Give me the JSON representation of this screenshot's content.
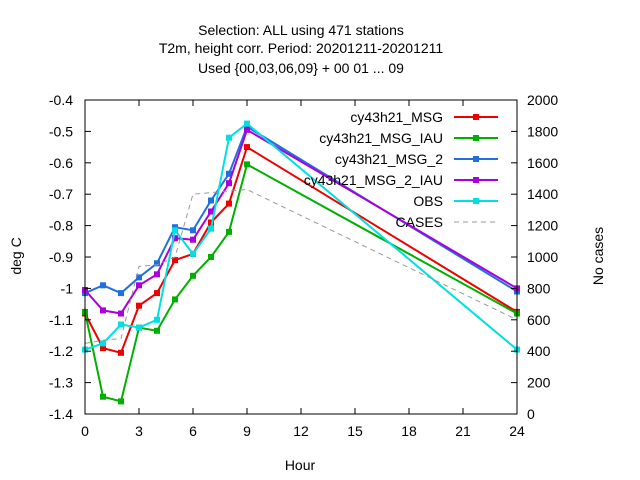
{
  "chart_data": {
    "type": "line",
    "title_lines": [
      "Selection: ALL using   471 stations",
      "T2m, height corr.   Period: 20201211-20201211",
      "Used {00,03,06,09} + 00 01 ... 09"
    ],
    "xlabel": "Hour",
    "ylabel": "deg C",
    "y2label": "No cases",
    "xlim": [
      0,
      24
    ],
    "ylim": [
      -1.4,
      -0.4
    ],
    "y2lim": [
      0,
      2000
    ],
    "xticks": [
      0,
      3,
      6,
      9,
      12,
      15,
      18,
      21,
      24
    ],
    "xtick_labels": [
      "0",
      "3",
      "6",
      "9",
      "12",
      "15",
      "18",
      "21",
      "24"
    ],
    "yticks": [
      -1.4,
      -1.3,
      -1.2,
      -1.1,
      -1.0,
      -0.9,
      -0.8,
      -0.7,
      -0.6,
      -0.5,
      -0.4
    ],
    "ytick_labels": [
      "-1.4",
      "-1.3",
      "-1.2",
      "-1.1",
      "-1",
      "-0.9",
      "-0.8",
      "-0.7",
      "-0.6",
      "-0.5",
      "-0.4"
    ],
    "y2ticks": [
      0,
      200,
      400,
      600,
      800,
      1000,
      1200,
      1400,
      1600,
      1800,
      2000
    ],
    "y2tick_labels": [
      "0",
      "200",
      "400",
      "600",
      "800",
      "1000",
      "1200",
      "1400",
      "1600",
      "1800",
      "2000"
    ],
    "grid": false,
    "legend_position": "top-right",
    "x": [
      0,
      1,
      2,
      3,
      4,
      5,
      6,
      7,
      8,
      9,
      24
    ],
    "series": [
      {
        "name": "cy43h21_MSG",
        "color": "#ee0000",
        "marker": "circle",
        "axis": "y1",
        "values": [
          -1.08,
          -1.19,
          -1.205,
          -1.055,
          -1.015,
          -0.91,
          -0.89,
          -0.79,
          -0.73,
          -0.55,
          -1.075
        ]
      },
      {
        "name": "cy43h21_MSG_IAU",
        "color": "#00b000",
        "marker": "circle",
        "axis": "y1",
        "values": [
          -1.075,
          -1.345,
          -1.36,
          -1.125,
          -1.135,
          -1.035,
          -0.96,
          -0.9,
          -0.82,
          -0.605,
          -1.08
        ]
      },
      {
        "name": "cy43h21_MSG_2",
        "color": "#1f6fe0",
        "marker": "circle",
        "axis": "y1",
        "values": [
          -1.015,
          -0.99,
          -1.015,
          -0.965,
          -0.92,
          -0.805,
          -0.815,
          -0.72,
          -0.635,
          -0.485,
          -1.01
        ]
      },
      {
        "name": "cy43h21_MSG_2_IAU",
        "color": "#aa00dd",
        "marker": "circle",
        "axis": "y1",
        "values": [
          -1.005,
          -1.07,
          -1.08,
          -0.99,
          -0.955,
          -0.84,
          -0.845,
          -0.755,
          -0.665,
          -0.495,
          -1.0
        ]
      },
      {
        "name": "OBS",
        "color": "#00e0e0",
        "marker": "circle",
        "axis": "y1",
        "values": [
          -1.195,
          -1.175,
          -1.115,
          -1.125,
          -1.1,
          -0.815,
          -0.89,
          -0.81,
          -0.52,
          -0.475,
          -1.195
        ]
      },
      {
        "name": "CASES",
        "color": "#999999",
        "marker": "none",
        "dash": true,
        "axis": "y2",
        "values": [
          450,
          470,
          480,
          940,
          950,
          1000,
          1400,
          1410,
          1420,
          1430,
          600
        ]
      }
    ]
  }
}
